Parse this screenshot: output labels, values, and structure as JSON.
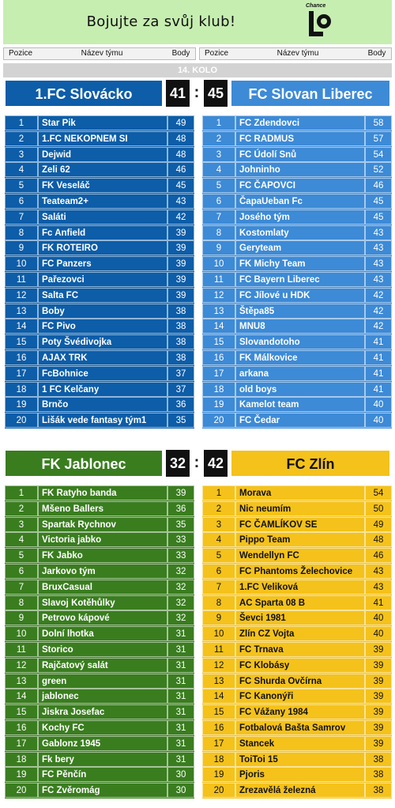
{
  "banner": {
    "text": "Bojujte za svůj klub!",
    "logo_text": "Chance",
    "logo_icon": "chance-logo-icon"
  },
  "header": {
    "pozice": "Pozice",
    "nazev": "Název týmu",
    "body": "Body"
  },
  "round": "14. KOLO",
  "colors": {
    "dark_blue": "#0d5da8",
    "light_blue": "#3d8ad6",
    "green": "#3a7d1f",
    "yellow": "#f4c21b"
  },
  "match1": {
    "home": {
      "name": "1.FC Slovácko",
      "score": "41"
    },
    "away": {
      "name": "FC Slovan Liberec",
      "score": "45"
    },
    "home_table": [
      [
        "1",
        "Star Pik",
        "49"
      ],
      [
        "2",
        "1.FC NEKOPNEM SI",
        "48"
      ],
      [
        "3",
        "Dejwid",
        "48"
      ],
      [
        "4",
        "Zeli 62",
        "46"
      ],
      [
        "5",
        "FK Veseláč",
        "45"
      ],
      [
        "6",
        "Teateam2+",
        "43"
      ],
      [
        "7",
        "Saláti",
        "42"
      ],
      [
        "8",
        "Fc Anfield",
        "39"
      ],
      [
        "9",
        "FK ROTEIRO",
        "39"
      ],
      [
        "10",
        "FC Panzers",
        "39"
      ],
      [
        "11",
        "Pařezovci",
        "39"
      ],
      [
        "12",
        "Salta FC",
        "39"
      ],
      [
        "13",
        "Boby",
        "38"
      ],
      [
        "14",
        "FC Pivo",
        "38"
      ],
      [
        "15",
        "Poty Švédivojka",
        "38"
      ],
      [
        "16",
        "AJAX TRK",
        "38"
      ],
      [
        "17",
        "FcBohnice",
        "37"
      ],
      [
        "18",
        "1 FC Kelčany",
        "37"
      ],
      [
        "19",
        "Brnčo",
        "36"
      ],
      [
        "20",
        "Lišák vede fantasy tým1",
        "35"
      ]
    ],
    "away_table": [
      [
        "1",
        "FC Zdendovci",
        "58"
      ],
      [
        "2",
        "FC RADMUS",
        "57"
      ],
      [
        "3",
        "FC Údolí Snů",
        "54"
      ],
      [
        "4",
        "Johninho",
        "52"
      ],
      [
        "5",
        "FC ČAPOVCI",
        "46"
      ],
      [
        "6",
        "ČapaUeban Fc",
        "45"
      ],
      [
        "7",
        "Josého tým",
        "45"
      ],
      [
        "8",
        "Kostomlaty",
        "43"
      ],
      [
        "9",
        "Geryteam",
        "43"
      ],
      [
        "10",
        "FK Michy Team",
        "43"
      ],
      [
        "11",
        "FC Bayern Liberec",
        "43"
      ],
      [
        "12",
        "FC Jílové u HDK",
        "42"
      ],
      [
        "13",
        "Štěpa85",
        "42"
      ],
      [
        "14",
        "MNU8",
        "42"
      ],
      [
        "15",
        "Slovandotoho",
        "41"
      ],
      [
        "16",
        "FK Málkovice",
        "41"
      ],
      [
        "17",
        "arkana",
        "41"
      ],
      [
        "18",
        "old boys",
        "41"
      ],
      [
        "19",
        "Kamelot team",
        "40"
      ],
      [
        "20",
        "FC Čedar",
        "40"
      ]
    ]
  },
  "match2": {
    "home": {
      "name": "FK Jablonec",
      "score": "32"
    },
    "away": {
      "name": "FC Zlín",
      "score": "42"
    },
    "home_table": [
      [
        "1",
        "FK Ratyho banda",
        "39"
      ],
      [
        "2",
        "Mšeno Ballers",
        "36"
      ],
      [
        "3",
        "Spartak Rychnov",
        "35"
      ],
      [
        "4",
        "Victoria jabko",
        "33"
      ],
      [
        "5",
        "FK Jabko",
        "33"
      ],
      [
        "6",
        "Jarkovo tým",
        "32"
      ],
      [
        "7",
        "BruxCasual",
        "32"
      ],
      [
        "8",
        "Slavoj Kotěhůlky",
        "32"
      ],
      [
        "9",
        "Petrovo kápové",
        "32"
      ],
      [
        "10",
        "Dolní lhotka",
        "31"
      ],
      [
        "11",
        "Storico",
        "31"
      ],
      [
        "12",
        "Rajčatový salát",
        "31"
      ],
      [
        "13",
        "green",
        "31"
      ],
      [
        "14",
        "jablonec",
        "31"
      ],
      [
        "15",
        "Jiskra Josefac",
        "31"
      ],
      [
        "16",
        "Kochy FC",
        "31"
      ],
      [
        "17",
        "Gablonz 1945",
        "31"
      ],
      [
        "18",
        "Fk bery",
        "31"
      ],
      [
        "19",
        "FC Pěnčín",
        "30"
      ],
      [
        "20",
        "FC Zvěromág",
        "30"
      ]
    ],
    "away_table": [
      [
        "1",
        "Morava",
        "54"
      ],
      [
        "2",
        "Nic neumím",
        "50"
      ],
      [
        "3",
        "FC ČAMLÍKOV SE",
        "49"
      ],
      [
        "4",
        "Pippo Team",
        "48"
      ],
      [
        "5",
        "Wendellyn FC",
        "46"
      ],
      [
        "6",
        "FC Phantoms Želechovice",
        "43"
      ],
      [
        "7",
        "1.FC Veliková",
        "43"
      ],
      [
        "8",
        "AC Sparta 08 B",
        "41"
      ],
      [
        "9",
        "Ševci 1981",
        "40"
      ],
      [
        "10",
        "Zlín CZ Vojta",
        "40"
      ],
      [
        "11",
        "FC Trnava",
        "39"
      ],
      [
        "12",
        "FC Klobásy",
        "39"
      ],
      [
        "13",
        "FC Shurda Ovčírna",
        "39"
      ],
      [
        "14",
        "FC Kanonýři",
        "39"
      ],
      [
        "15",
        "FC Vážany 1984",
        "39"
      ],
      [
        "16",
        "Fotbalová Bašta Samrov",
        "39"
      ],
      [
        "17",
        "Stancek",
        "39"
      ],
      [
        "18",
        "ToiToi 15",
        "38"
      ],
      [
        "19",
        "Pjoris",
        "38"
      ],
      [
        "20",
        "Zrezavělá železná",
        "38"
      ]
    ]
  }
}
